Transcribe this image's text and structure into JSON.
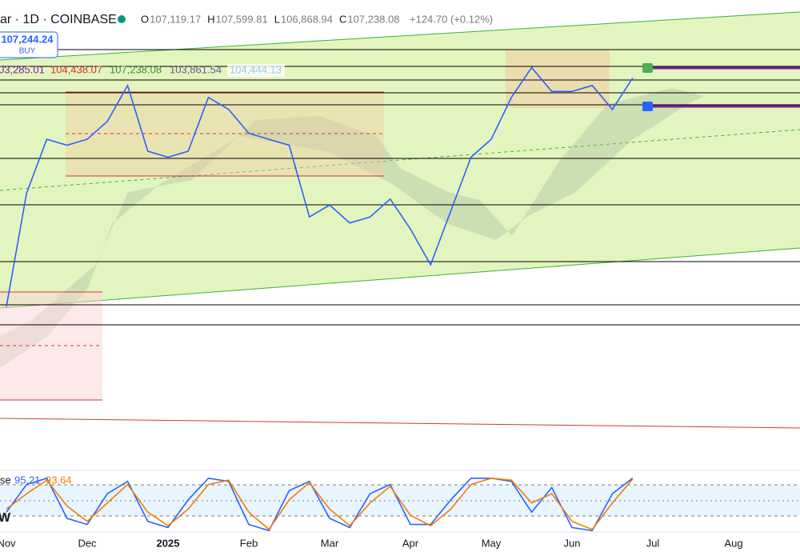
{
  "header": {
    "symbol": "ar · 1D · COINBASE",
    "ohlc": [
      {
        "label": "O",
        "value": "107,119.17"
      },
      {
        "label": "H",
        "value": "107,599.81"
      },
      {
        "label": "L",
        "value": "106,868.94"
      },
      {
        "label": "C",
        "value": "107,238.08"
      }
    ],
    "change": "+124.70 (+0.12%)"
  },
  "buy_box": {
    "price": "107,244.24",
    "label": "BUY"
  },
  "indicators": [
    "03,285.01",
    "104,438.07",
    "107,238.08",
    "103,861.54",
    "104,444.13"
  ],
  "stoch_label": "se",
  "logo": "W",
  "chart_data": [
    {
      "type": "line",
      "categories": [
        "Nov",
        null,
        null,
        null,
        "Dec",
        null,
        null,
        null,
        "2025",
        null,
        null,
        null,
        "Feb",
        null,
        null,
        null,
        "Mar",
        null,
        null,
        null,
        "Apr",
        null,
        null,
        null,
        "May",
        null,
        null,
        null,
        "Jun",
        null,
        null,
        null,
        "Jul",
        null,
        null,
        null,
        "Aug",
        null,
        null
      ],
      "values": [
        69000,
        88000,
        97000,
        96000,
        97000,
        100000,
        106000,
        95000,
        94000,
        95000,
        104000,
        102000,
        98000,
        97000,
        96000,
        84000,
        86000,
        83000,
        84000,
        87000,
        82000,
        76000,
        85000,
        94000,
        97000,
        104000,
        109000,
        105000,
        105000,
        106000,
        102000,
        107238.08,
        null,
        null,
        null,
        null,
        null,
        null,
        null
      ],
      "color": "#2962ff",
      "ylim": [
        42000,
        120300
      ]
    },
    {
      "type": "line",
      "series": [
        {
          "color": "#2962ff",
          "values": [
            40,
            85,
            95,
            30,
            20,
            70,
            90,
            25,
            15,
            60,
            95,
            90,
            20,
            10,
            75,
            90,
            30,
            15,
            70,
            85,
            20,
            20,
            60,
            95,
            95,
            90,
            40,
            80,
            15,
            10,
            70,
            95.21
          ]
        },
        {
          "color": "#f57c00",
          "values": [
            45,
            70,
            92,
            50,
            25,
            55,
            85,
            40,
            18,
            45,
            85,
            92,
            40,
            12,
            60,
            88,
            45,
            18,
            55,
            82,
            35,
            18,
            45,
            85,
            95,
            92,
            55,
            70,
            25,
            12,
            55,
            93.64
          ]
        }
      ],
      "ylim": [
        0,
        100
      ]
    }
  ]
}
